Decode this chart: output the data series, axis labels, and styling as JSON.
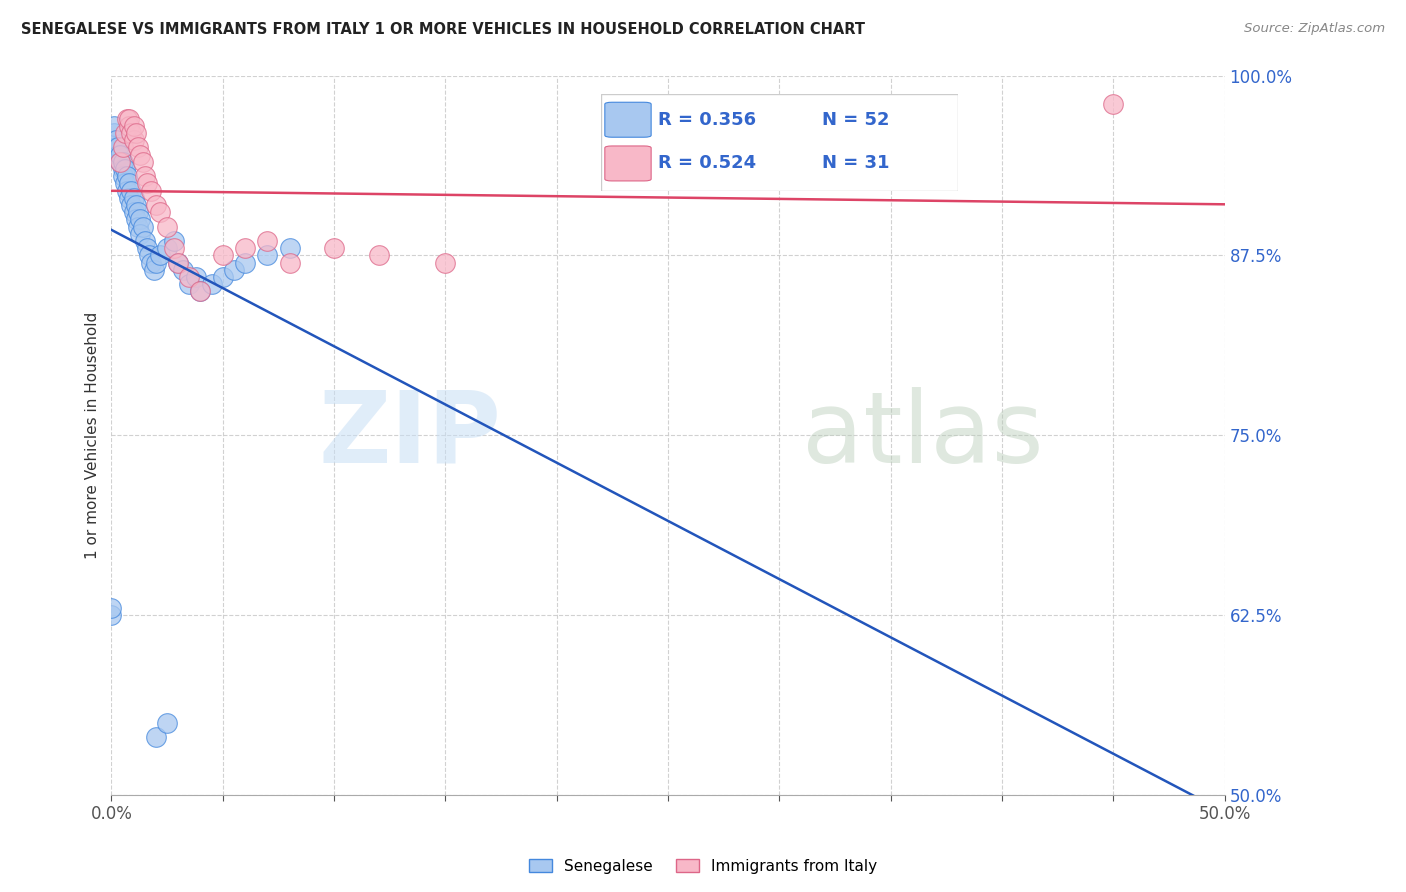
{
  "title": "SENEGALESE VS IMMIGRANTS FROM ITALY 1 OR MORE VEHICLES IN HOUSEHOLD CORRELATION CHART",
  "source": "Source: ZipAtlas.com",
  "ylabel": "1 or more Vehicles in Household",
  "xlim": [
    0.0,
    0.5
  ],
  "ylim": [
    0.5,
    1.0
  ],
  "yticks": [
    0.5,
    0.625,
    0.75,
    0.875,
    1.0
  ],
  "ytick_labels": [
    "50.0%",
    "62.5%",
    "75.0%",
    "87.5%",
    "100.0%"
  ],
  "xtick_labels": [
    "0.0%",
    "50.0%"
  ],
  "legend_labels": [
    "Senegalese",
    "Immigrants from Italy"
  ],
  "blue_R": 0.356,
  "blue_N": 52,
  "pink_R": 0.524,
  "pink_N": 31,
  "blue_color": "#a8c8f0",
  "pink_color": "#f8b8c8",
  "blue_edge_color": "#4488dd",
  "pink_edge_color": "#dd6688",
  "blue_line_color": "#2255bb",
  "pink_line_color": "#dd4466",
  "watermark_zip": "ZIP",
  "watermark_atlas": "atlas",
  "blue_points_x": [
    0.0,
    0.0,
    0.001,
    0.001,
    0.002,
    0.002,
    0.003,
    0.003,
    0.004,
    0.004,
    0.005,
    0.005,
    0.005,
    0.006,
    0.006,
    0.007,
    0.007,
    0.008,
    0.008,
    0.009,
    0.009,
    0.01,
    0.01,
    0.011,
    0.011,
    0.012,
    0.012,
    0.013,
    0.013,
    0.014,
    0.015,
    0.016,
    0.017,
    0.018,
    0.019,
    0.02,
    0.022,
    0.025,
    0.028,
    0.03,
    0.032,
    0.035,
    0.038,
    0.04,
    0.045,
    0.05,
    0.055,
    0.06,
    0.07,
    0.08,
    0.02,
    0.025
  ],
  "blue_points_y": [
    0.625,
    0.63,
    0.96,
    0.965,
    0.95,
    0.955,
    0.945,
    0.95,
    0.94,
    0.945,
    0.935,
    0.94,
    0.93,
    0.935,
    0.925,
    0.93,
    0.92,
    0.925,
    0.915,
    0.92,
    0.91,
    0.915,
    0.905,
    0.91,
    0.9,
    0.905,
    0.895,
    0.9,
    0.89,
    0.895,
    0.885,
    0.88,
    0.875,
    0.87,
    0.865,
    0.87,
    0.875,
    0.88,
    0.885,
    0.87,
    0.865,
    0.855,
    0.86,
    0.85,
    0.855,
    0.86,
    0.865,
    0.87,
    0.875,
    0.88,
    0.54,
    0.55
  ],
  "pink_points_x": [
    0.004,
    0.005,
    0.006,
    0.007,
    0.008,
    0.008,
    0.009,
    0.01,
    0.01,
    0.011,
    0.012,
    0.013,
    0.014,
    0.015,
    0.016,
    0.018,
    0.02,
    0.022,
    0.025,
    0.028,
    0.03,
    0.035,
    0.04,
    0.05,
    0.06,
    0.07,
    0.08,
    0.1,
    0.12,
    0.15,
    0.45
  ],
  "pink_points_y": [
    0.94,
    0.95,
    0.96,
    0.97,
    0.965,
    0.97,
    0.96,
    0.955,
    0.965,
    0.96,
    0.95,
    0.945,
    0.94,
    0.93,
    0.925,
    0.92,
    0.91,
    0.905,
    0.895,
    0.88,
    0.87,
    0.86,
    0.85,
    0.875,
    0.88,
    0.885,
    0.87,
    0.88,
    0.875,
    0.87,
    0.98
  ]
}
